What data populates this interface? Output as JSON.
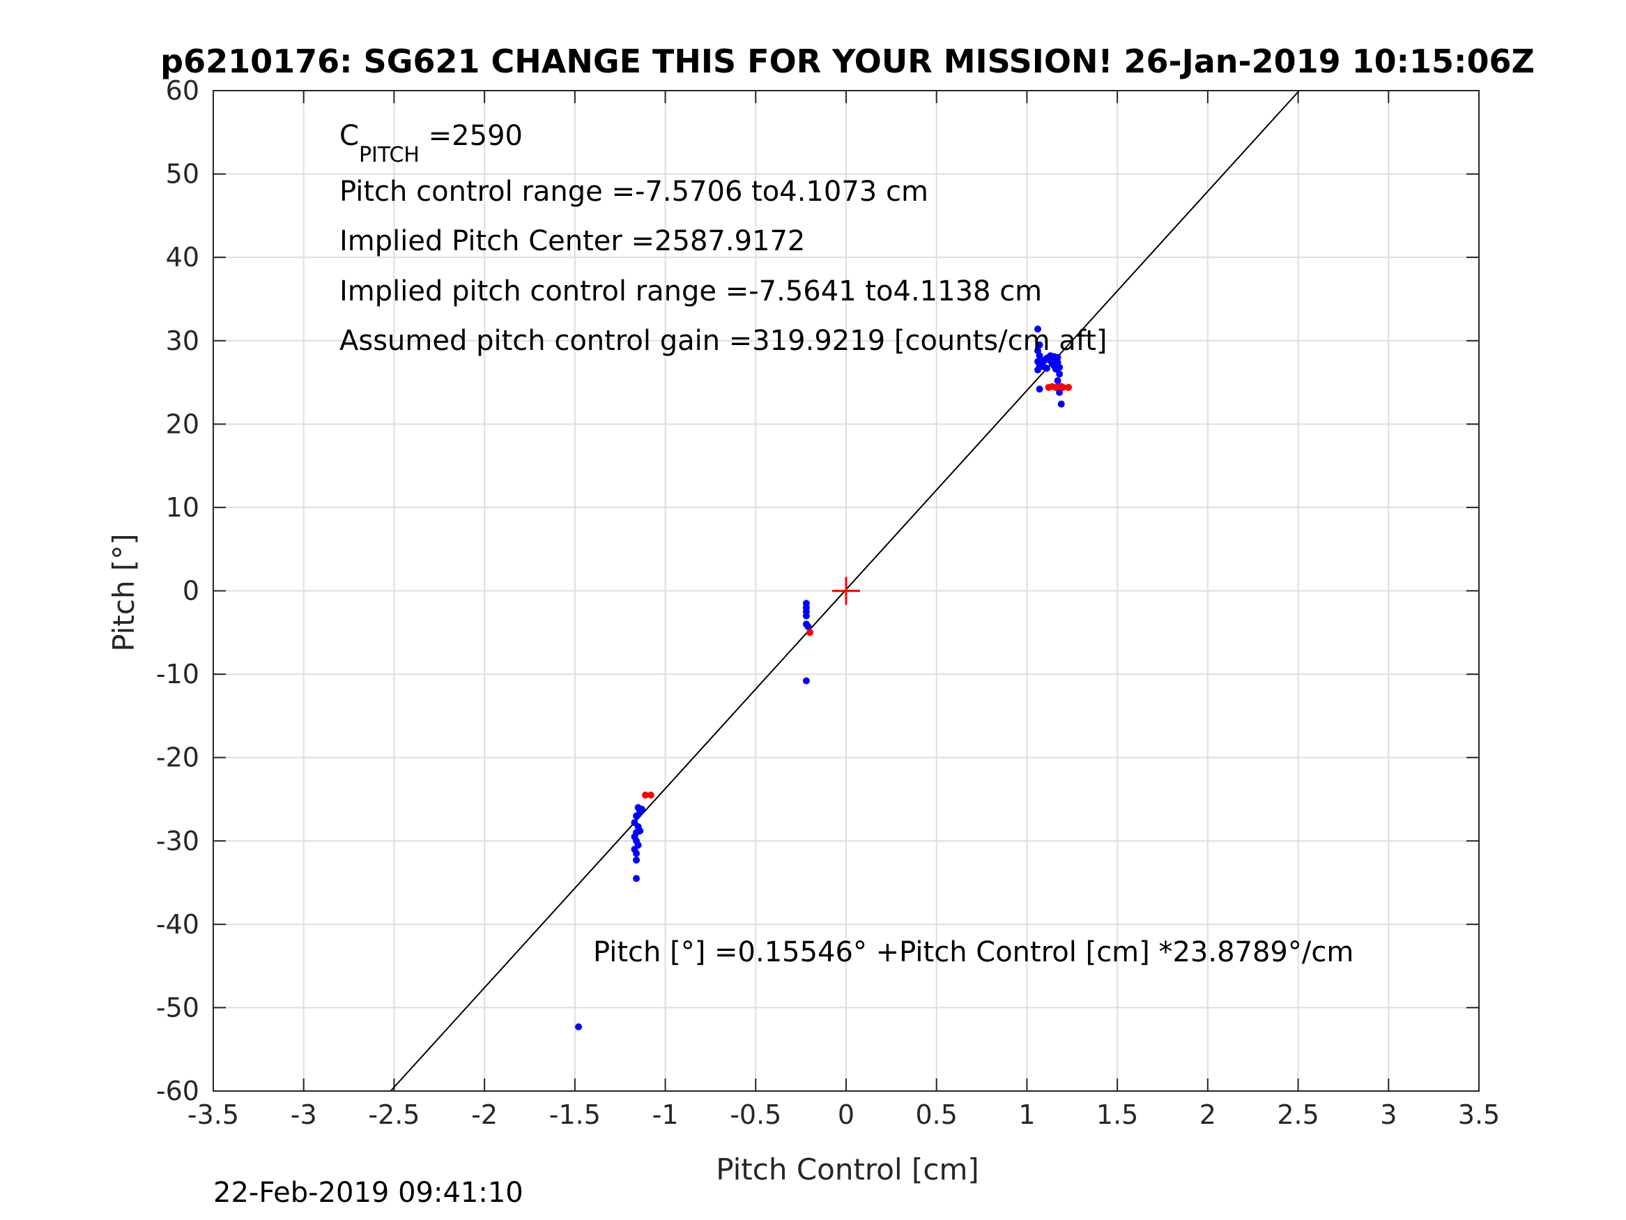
{
  "chart_data": {
    "type": "scatter",
    "title": "p6210176: SG621 CHANGE THIS FOR YOUR MISSION! 26-Jan-2019 10:15:06Z",
    "xlabel": "Pitch Control [cm]",
    "ylabel": "Pitch [°]",
    "xlim": [
      -3.5,
      3.5
    ],
    "ylim": [
      -60,
      60
    ],
    "x_ticks": [
      -3.5,
      -3,
      -2.5,
      -2,
      -1.5,
      -1,
      -0.5,
      0,
      0.5,
      1,
      1.5,
      2,
      2.5,
      3,
      3.5
    ],
    "x_tick_labels": [
      "-3.5",
      "-3",
      "-2.5",
      "-2",
      "-1.5",
      "-1",
      "-0.5",
      "0",
      "0.5",
      "1",
      "1.5",
      "2",
      "2.5",
      "3",
      "3.5"
    ],
    "y_ticks": [
      -60,
      -50,
      -40,
      -30,
      -20,
      -10,
      0,
      10,
      20,
      30,
      40,
      50,
      60
    ],
    "y_tick_labels": [
      "-60",
      "-50",
      "-40",
      "-30",
      "-20",
      "-10",
      "0",
      "10",
      "20",
      "30",
      "40",
      "50",
      "60"
    ],
    "grid": true,
    "box": true,
    "fit_line": {
      "intercept": 0.15546,
      "slope": 23.8789,
      "color": "#000000"
    },
    "center_marker": {
      "x": 0,
      "y": 0,
      "color": "#ff0000",
      "shape": "plus"
    },
    "series": [
      {
        "color": "#0000ff",
        "points": [
          [
            1.06,
            31.4
          ],
          [
            1.07,
            29.5
          ],
          [
            1.06,
            28.8
          ],
          [
            1.07,
            28.2
          ],
          [
            1.06,
            27.5
          ],
          [
            1.07,
            27.0
          ],
          [
            1.06,
            26.5
          ],
          [
            1.08,
            27.2
          ],
          [
            1.09,
            27.5
          ],
          [
            1.1,
            27.7
          ],
          [
            1.11,
            27.9
          ],
          [
            1.12,
            28.0
          ],
          [
            1.13,
            27.6
          ],
          [
            1.14,
            27.3
          ],
          [
            1.15,
            27.0
          ],
          [
            1.16,
            26.6
          ],
          [
            1.15,
            28.1
          ],
          [
            1.16,
            27.8
          ],
          [
            1.17,
            27.4
          ],
          [
            1.18,
            26.8
          ],
          [
            1.18,
            26.0
          ],
          [
            1.17,
            25.2
          ],
          [
            1.19,
            24.5
          ],
          [
            1.18,
            23.8
          ],
          [
            1.19,
            22.4
          ],
          [
            1.07,
            24.2
          ],
          [
            1.09,
            26.9
          ],
          [
            1.11,
            26.7
          ],
          [
            1.13,
            28.2
          ],
          [
            1.17,
            28.0
          ],
          [
            -0.22,
            -1.5
          ],
          [
            -0.22,
            -2.0
          ],
          [
            -0.22,
            -2.5
          ],
          [
            -0.22,
            -3.0
          ],
          [
            -0.22,
            -4.0
          ],
          [
            -0.21,
            -4.3
          ],
          [
            -0.22,
            -10.8
          ],
          [
            -1.15,
            -26.0
          ],
          [
            -1.14,
            -26.5
          ],
          [
            -1.16,
            -27.0
          ],
          [
            -1.17,
            -27.8
          ],
          [
            -1.15,
            -28.3
          ],
          [
            -1.16,
            -29.0
          ],
          [
            -1.17,
            -29.5
          ],
          [
            -1.16,
            -30.0
          ],
          [
            -1.15,
            -30.5
          ],
          [
            -1.17,
            -31.0
          ],
          [
            -1.16,
            -31.5
          ],
          [
            -1.16,
            -32.3
          ],
          [
            -1.14,
            -28.8
          ],
          [
            -1.13,
            -26.2
          ],
          [
            -1.16,
            -34.5
          ],
          [
            -1.48,
            -52.3
          ]
        ]
      },
      {
        "color": "#ff0000",
        "points": [
          [
            1.12,
            24.4
          ],
          [
            1.14,
            24.5
          ],
          [
            1.16,
            24.4
          ],
          [
            1.18,
            24.5
          ],
          [
            1.2,
            24.4
          ],
          [
            1.23,
            24.4
          ],
          [
            -0.2,
            -5.0
          ],
          [
            -1.11,
            -24.5
          ],
          [
            -1.08,
            -24.5
          ]
        ]
      }
    ],
    "annotations": {
      "cpitch_symbol": "C",
      "cpitch_subscript": "PITCH",
      "cpitch_value": " =2590",
      "pitch_range": "Pitch control range =-7.5706 to4.1073 cm",
      "implied_center": "Implied Pitch Center =2587.9172",
      "implied_range": "Implied pitch control range =-7.5641 to4.1138 cm",
      "gain": "Assumed pitch control gain =319.9219 [counts/cm aft]",
      "fit_equation": "Pitch [°] =0.15546° +Pitch Control [cm] *23.8789°/cm"
    }
  },
  "footer": {
    "timestamp": "22-Feb-2019 09:41:10"
  }
}
